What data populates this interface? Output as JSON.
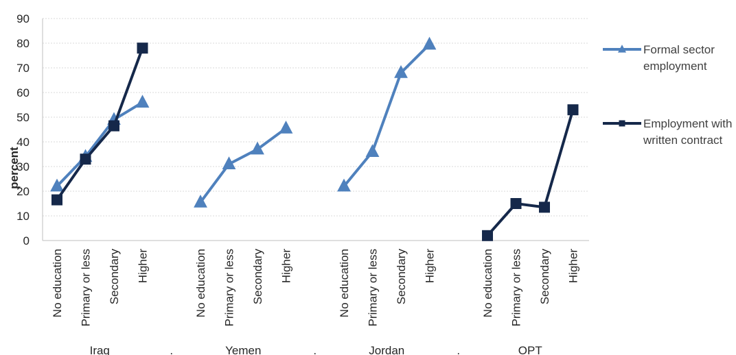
{
  "chart_data": {
    "type": "line",
    "ylabel": "percent",
    "ylim": [
      0,
      90
    ],
    "yticks": [
      0,
      10,
      20,
      30,
      40,
      50,
      60,
      70,
      80,
      90
    ],
    "grid": true,
    "legend_position": "right",
    "categories": [
      "No education",
      "Primary or less",
      "Secondary",
      "Higher"
    ],
    "groups": [
      {
        "name": "Iraq",
        "series": [
          {
            "name": "Formal sector employment",
            "values": [
              22,
              34,
              49,
              56
            ]
          },
          {
            "name": "Employment with written contract",
            "values": [
              16.5,
              33,
              46.5,
              78
            ]
          }
        ]
      },
      {
        "name": "Yemen",
        "series": [
          {
            "name": "Formal sector employment",
            "values": [
              15.5,
              31,
              37,
              45.5
            ]
          },
          {
            "name": "Employment with written contract",
            "values": [
              null,
              null,
              null,
              null
            ]
          }
        ]
      },
      {
        "name": "Jordan",
        "series": [
          {
            "name": "Formal sector employment",
            "values": [
              22,
              36,
              68,
              79.5
            ]
          },
          {
            "name": "Employment with written contract",
            "values": [
              null,
              null,
              null,
              null
            ]
          }
        ]
      },
      {
        "name": "OPT",
        "series": [
          {
            "name": "Formal sector employment",
            "values": [
              null,
              null,
              null,
              null
            ]
          },
          {
            "name": "Employment with written contract",
            "values": [
              2,
              15,
              13.5,
              53
            ]
          }
        ]
      }
    ],
    "legend": [
      {
        "name": "Formal sector employment",
        "lines": [
          "Formal sector",
          "employment"
        ],
        "color": "#4f81bd",
        "marker": "triangle"
      },
      {
        "name": "Employment with written contract",
        "lines": [
          "Employment with",
          "written contract"
        ],
        "color": "#15284a",
        "marker": "square"
      }
    ],
    "separators": [
      ".",
      ".",
      "."
    ]
  }
}
